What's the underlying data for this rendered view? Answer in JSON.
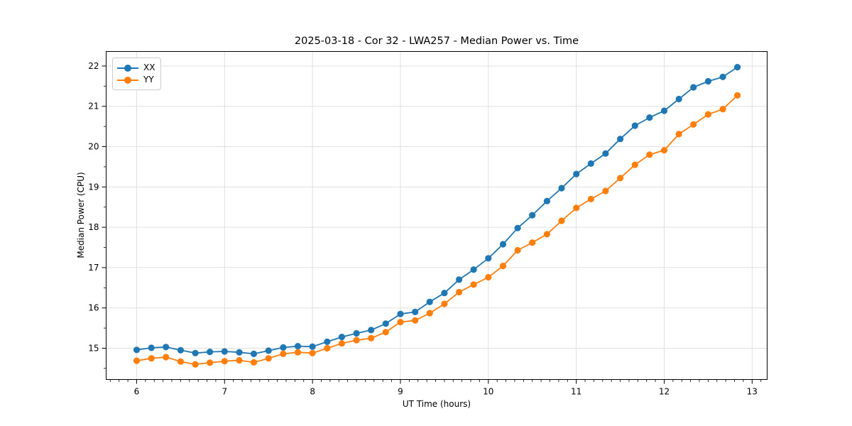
{
  "chart_data": {
    "type": "line",
    "title": "2025-03-18 - Cor 32 - LWA257 - Median Power vs. Time",
    "xlabel": "UT Time (hours)",
    "ylabel": "Median Power (CPU)",
    "xlim": [
      5.653,
      13.171
    ],
    "ylim": [
      14.225,
      22.36
    ],
    "xticks": [
      6,
      7,
      8,
      9,
      10,
      11,
      12,
      13
    ],
    "yticks": [
      15,
      16,
      17,
      18,
      19,
      20,
      21,
      22
    ],
    "x_minor_step": 0.1,
    "y_minor_step": 0.5,
    "grid": true,
    "legend_position": "upper-left",
    "background_color": "#ffffff",
    "grid_color": "#e0e0e0",
    "spine_color": "#000000",
    "x": [
      6.0,
      6.167,
      6.333,
      6.5,
      6.667,
      6.833,
      7.0,
      7.167,
      7.333,
      7.5,
      7.667,
      7.833,
      8.0,
      8.167,
      8.333,
      8.5,
      8.667,
      8.833,
      9.0,
      9.167,
      9.333,
      9.5,
      9.667,
      9.833,
      10.0,
      10.167,
      10.333,
      10.5,
      10.667,
      10.833,
      11.0,
      11.167,
      11.333,
      11.5,
      11.667,
      11.833,
      12.0,
      12.167,
      12.333,
      12.5,
      12.667,
      12.833
    ],
    "series": [
      {
        "name": "XX",
        "color": "#1f77b4",
        "values": [
          14.96,
          15.01,
          15.03,
          14.95,
          14.88,
          14.91,
          14.92,
          14.9,
          14.86,
          14.94,
          15.02,
          15.05,
          15.04,
          15.16,
          15.28,
          15.37,
          15.45,
          15.61,
          15.85,
          15.9,
          16.15,
          16.37,
          16.7,
          16.95,
          17.23,
          17.58,
          17.98,
          18.3,
          18.65,
          18.97,
          19.32,
          19.58,
          19.83,
          20.19,
          20.52,
          20.72,
          20.89,
          21.18,
          21.47,
          21.62,
          21.73,
          21.97
        ]
      },
      {
        "name": "YY",
        "color": "#ff7f0e",
        "values": [
          14.69,
          14.75,
          14.78,
          14.67,
          14.6,
          14.64,
          14.68,
          14.7,
          14.65,
          14.75,
          14.86,
          14.9,
          14.88,
          15.0,
          15.12,
          15.2,
          15.25,
          15.4,
          15.65,
          15.69,
          15.87,
          16.1,
          16.39,
          16.58,
          16.76,
          17.04,
          17.43,
          17.62,
          17.83,
          18.16,
          18.48,
          18.7,
          18.9,
          19.22,
          19.55,
          19.8,
          19.91,
          20.31,
          20.55,
          20.8,
          20.93,
          21.27
        ]
      }
    ]
  }
}
